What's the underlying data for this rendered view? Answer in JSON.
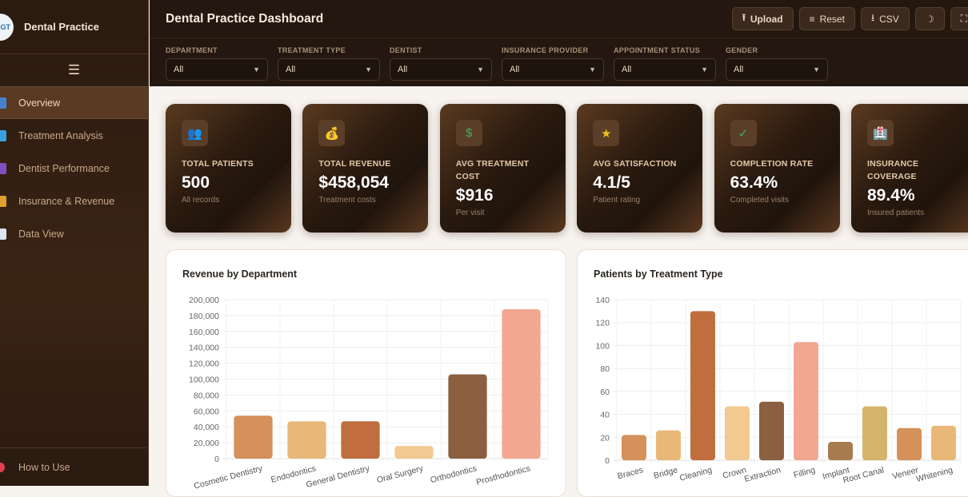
{
  "sidebar": {
    "logo_text": "LGT",
    "brand": "Dental Practice",
    "menu_icon": "☰",
    "items": [
      {
        "label": "Overview",
        "icon": "bar-chart-icon",
        "color": "#4a7fd0"
      },
      {
        "label": "Treatment Analysis",
        "icon": "syringe-icon",
        "color": "#3aa0e0"
      },
      {
        "label": "Dentist Performance",
        "icon": "microscope-icon",
        "color": "#8050c0"
      },
      {
        "label": "Insurance & Revenue",
        "icon": "money-bag-icon",
        "color": "#e0a030"
      },
      {
        "label": "Data View",
        "icon": "document-icon",
        "color": "#dde4ee"
      }
    ],
    "how_to": "How to Use"
  },
  "header": {
    "title": "Dental Practice Dashboard",
    "buttons": {
      "upload": "Upload",
      "reset": "Reset",
      "csv": "CSV",
      "theme": "☽",
      "fullscreen": "⛶"
    }
  },
  "filters": [
    {
      "label": "DEPARTMENT",
      "value": "All"
    },
    {
      "label": "TREATMENT TYPE",
      "value": "All"
    },
    {
      "label": "DENTIST",
      "value": "All"
    },
    {
      "label": "INSURANCE PROVIDER",
      "value": "All"
    },
    {
      "label": "APPOINTMENT STATUS",
      "value": "All"
    },
    {
      "label": "GENDER",
      "value": "All"
    }
  ],
  "kpis": [
    {
      "label": "TOTAL PATIENTS",
      "value": "500",
      "sub": "All records",
      "icon": "👥"
    },
    {
      "label": "TOTAL REVENUE",
      "value": "$458,054",
      "sub": "Treatment costs",
      "icon": "💰"
    },
    {
      "label": "AVG TREATMENT COST",
      "value": "$916",
      "sub": "Per visit",
      "icon": "$"
    },
    {
      "label": "AVG SATISFACTION",
      "value": "4.1/5",
      "sub": "Patient rating",
      "icon": "★"
    },
    {
      "label": "COMPLETION RATE",
      "value": "63.4%",
      "sub": "Completed visits",
      "icon": "✓"
    },
    {
      "label": "INSURANCE COVERAGE",
      "value": "89.4%",
      "sub": "Insured patients",
      "icon": "🏥"
    }
  ],
  "chart_data": [
    {
      "type": "bar",
      "title": "Revenue by Department",
      "categories": [
        "Cosmetic Dentistry",
        "Endodontics",
        "General Dentistry",
        "Oral Surgery",
        "Orthodontics",
        "Prosthodontics"
      ],
      "values": [
        54000,
        47000,
        47000,
        16000,
        106000,
        188000
      ],
      "ylim": [
        0,
        200000
      ],
      "yticks": [
        "0",
        "20,000",
        "40,000",
        "60,000",
        "80,000",
        "100,000",
        "120,000",
        "140,000",
        "160,000",
        "180,000",
        "200,000"
      ],
      "colors": [
        "#d4915a",
        "#e8b878",
        "#c06e3e",
        "#f2c990",
        "#8a6040",
        "#f2a890"
      ],
      "grid": true
    },
    {
      "type": "bar",
      "title": "Patients by Treatment Type",
      "categories": [
        "Braces",
        "Bridge",
        "Cleaning",
        "Crown",
        "Extraction",
        "Filling",
        "Implant",
        "Root Canal",
        "Veneer",
        "Whitening"
      ],
      "values": [
        22,
        26,
        130,
        47,
        51,
        103,
        16,
        47,
        28,
        30
      ],
      "ylim": [
        0,
        140
      ],
      "yticks": [
        "0",
        "20",
        "40",
        "60",
        "80",
        "100",
        "120",
        "140"
      ],
      "colors": [
        "#d4915a",
        "#e8b878",
        "#c06e3e",
        "#f2c990",
        "#8a6040",
        "#f2a890",
        "#a87c50",
        "#d4b46a",
        "#d4915a",
        "#e8b878"
      ],
      "grid": true
    }
  ]
}
